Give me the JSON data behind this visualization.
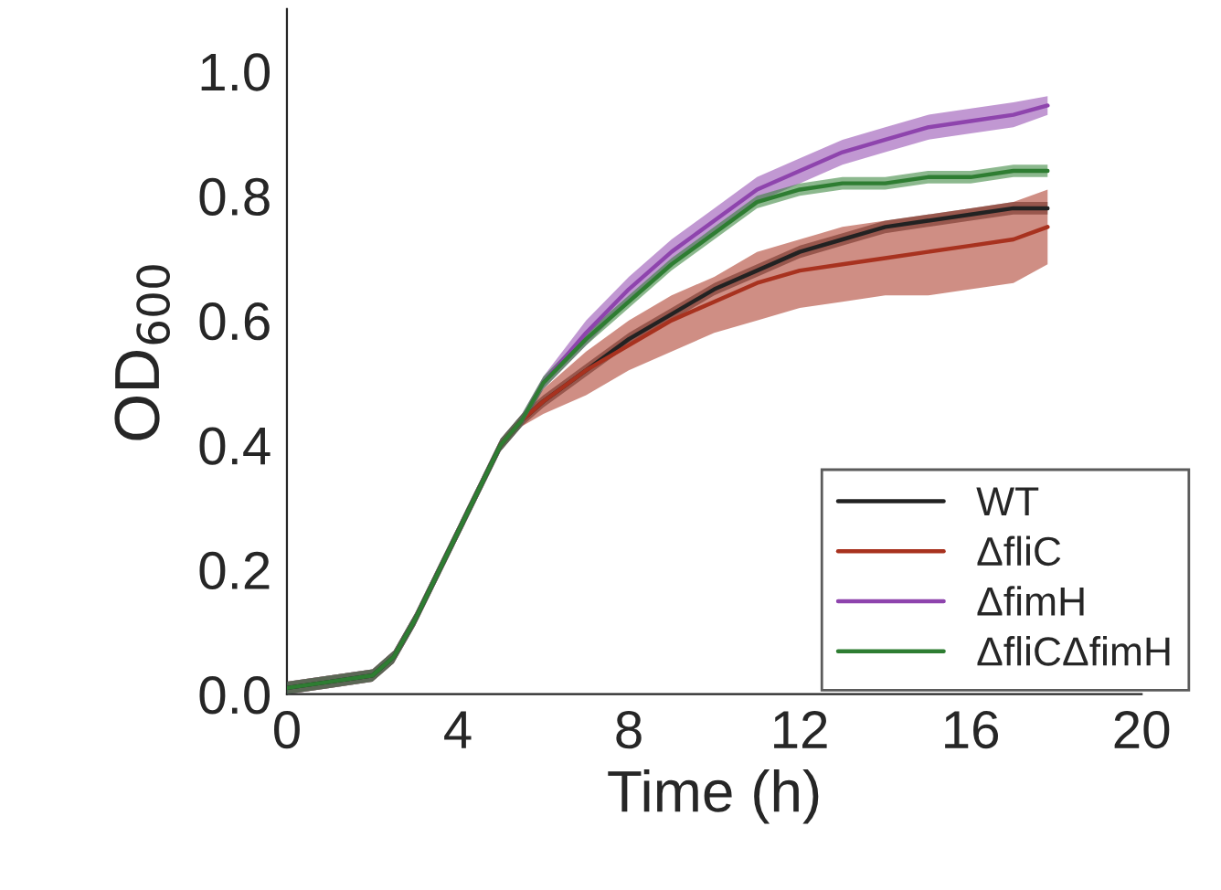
{
  "chart_data": {
    "type": "line",
    "xlabel": "Time (h)",
    "ylabel": "OD$_{600}$",
    "x": [
      0,
      1,
      2,
      2.5,
      3,
      3.5,
      4,
      4.5,
      5,
      5.5,
      6,
      7,
      8,
      9,
      10,
      11,
      12,
      13,
      14,
      15,
      16,
      17,
      17.8
    ],
    "series": [
      {
        "name": "WT",
        "color": "#222222",
        "values": [
          0.01,
          0.02,
          0.03,
          0.06,
          0.12,
          0.19,
          0.26,
          0.33,
          0.4,
          0.44,
          0.47,
          0.52,
          0.57,
          0.61,
          0.65,
          0.68,
          0.71,
          0.73,
          0.75,
          0.76,
          0.77,
          0.78,
          0.78
        ],
        "lower": [
          0,
          0.01,
          0.02,
          0.05,
          0.11,
          0.18,
          0.25,
          0.32,
          0.39,
          0.43,
          0.46,
          0.51,
          0.56,
          0.6,
          0.64,
          0.67,
          0.7,
          0.72,
          0.74,
          0.75,
          0.76,
          0.77,
          0.77
        ],
        "upper": [
          0.02,
          0.03,
          0.04,
          0.07,
          0.13,
          0.2,
          0.27,
          0.34,
          0.41,
          0.45,
          0.48,
          0.53,
          0.58,
          0.62,
          0.66,
          0.69,
          0.72,
          0.74,
          0.76,
          0.77,
          0.78,
          0.79,
          0.79
        ]
      },
      {
        "name": "ΔfliC",
        "color": "#a8321f",
        "values": [
          null,
          null,
          null,
          null,
          null,
          null,
          null,
          null,
          0.4,
          0.44,
          0.47,
          0.52,
          0.56,
          0.6,
          0.63,
          0.66,
          0.68,
          0.69,
          0.7,
          0.71,
          0.72,
          0.73,
          0.75
        ],
        "lower": [
          0,
          0.01,
          0.02,
          0.05,
          0.11,
          0.18,
          0.25,
          0.32,
          0.39,
          0.43,
          0.45,
          0.48,
          0.52,
          0.55,
          0.58,
          0.6,
          0.62,
          0.63,
          0.64,
          0.64,
          0.65,
          0.66,
          0.69
        ],
        "upper": [
          0.02,
          0.03,
          0.04,
          0.07,
          0.13,
          0.2,
          0.27,
          0.34,
          0.41,
          0.45,
          0.49,
          0.55,
          0.6,
          0.64,
          0.67,
          0.71,
          0.73,
          0.75,
          0.76,
          0.77,
          0.78,
          0.79,
          0.81
        ]
      },
      {
        "name": "ΔfimH",
        "color": "#8e44ad",
        "values": [
          null,
          null,
          null,
          null,
          null,
          null,
          null,
          null,
          null,
          0.44,
          0.5,
          0.58,
          0.65,
          0.71,
          0.76,
          0.81,
          0.84,
          0.87,
          0.89,
          0.91,
          0.92,
          0.93,
          0.945
        ],
        "lower": [
          0,
          0.01,
          0.02,
          0.05,
          0.11,
          0.18,
          0.25,
          0.32,
          0.39,
          0.43,
          0.49,
          0.56,
          0.63,
          0.69,
          0.74,
          0.79,
          0.82,
          0.85,
          0.87,
          0.89,
          0.9,
          0.91,
          0.93
        ],
        "upper": [
          0.02,
          0.03,
          0.04,
          0.07,
          0.13,
          0.2,
          0.27,
          0.34,
          0.41,
          0.45,
          0.51,
          0.6,
          0.67,
          0.73,
          0.78,
          0.83,
          0.86,
          0.89,
          0.91,
          0.93,
          0.94,
          0.95,
          0.96
        ]
      },
      {
        "name": "ΔfliCΔfimH",
        "color": "#2e7d32",
        "values": [
          0.01,
          0.02,
          0.03,
          0.06,
          0.12,
          0.19,
          0.26,
          0.33,
          0.4,
          0.44,
          0.5,
          0.57,
          0.63,
          0.69,
          0.74,
          0.79,
          0.81,
          0.82,
          0.82,
          0.83,
          0.83,
          0.84,
          0.84
        ],
        "lower": [
          0,
          0.01,
          0.02,
          0.05,
          0.11,
          0.18,
          0.25,
          0.32,
          0.39,
          0.43,
          0.49,
          0.56,
          0.62,
          0.68,
          0.73,
          0.78,
          0.8,
          0.81,
          0.81,
          0.82,
          0.82,
          0.83,
          0.83
        ],
        "upper": [
          0.02,
          0.03,
          0.04,
          0.07,
          0.13,
          0.2,
          0.27,
          0.34,
          0.41,
          0.45,
          0.51,
          0.58,
          0.64,
          0.7,
          0.75,
          0.8,
          0.82,
          0.83,
          0.83,
          0.84,
          0.84,
          0.85,
          0.85
        ]
      }
    ],
    "xlim": [
      0,
      20
    ],
    "xticks": [
      0,
      4,
      8,
      12,
      16,
      20
    ],
    "ylim": [
      0,
      1.1
    ],
    "yticks": [
      {
        "value": 0,
        "label": "0.0"
      },
      {
        "value": 0.2,
        "label": "0.2"
      },
      {
        "value": 0.4,
        "label": "0.4"
      },
      {
        "value": 0.6,
        "label": "0.6"
      },
      {
        "value": 0.8,
        "label": "0.8"
      },
      {
        "value": 1.0,
        "label": "1.0"
      }
    ],
    "legend": "bottom right",
    "grid": false,
    "marker": "none",
    "line_style": "solid"
  }
}
